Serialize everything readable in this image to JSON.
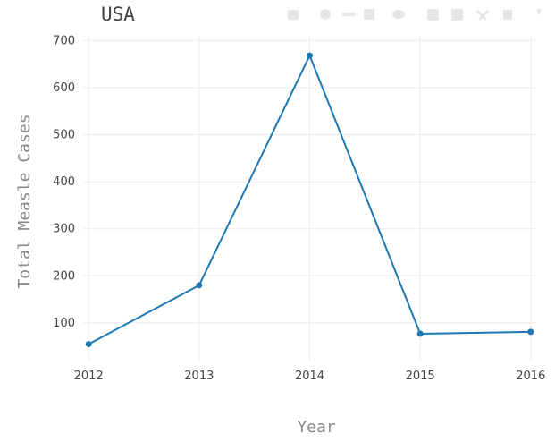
{
  "chart_data": {
    "type": "line",
    "title": "USA",
    "xlabel": "Year",
    "ylabel": "Total Measle Cases",
    "x": [
      2012,
      2013,
      2014,
      2015,
      2016
    ],
    "xticks": [
      "2012",
      "2013",
      "2014",
      "2015",
      "2016"
    ],
    "yticks": [
      100,
      200,
      300,
      400,
      500,
      600,
      700
    ],
    "ytick_labels": [
      "100",
      "200",
      "300",
      "400",
      "500",
      "600",
      "700"
    ],
    "series": [
      {
        "values": [
          55,
          180,
          668,
          77,
          81
        ]
      }
    ],
    "xlim": [
      2011.95,
      2016.05
    ],
    "ylim": [
      20,
      710
    ],
    "grid": true,
    "line_color": "#1f77b4",
    "grid_color": "#ececec"
  },
  "toolbar": {
    "icons": [
      "camera-icon",
      "zoom-icon",
      "pan-icon",
      "select-box-icon",
      "lasso-icon",
      "zoom-in-icon",
      "zoom-out-icon",
      "autoscale-icon",
      "reset-axes-icon",
      "spike-lines-icon"
    ]
  }
}
